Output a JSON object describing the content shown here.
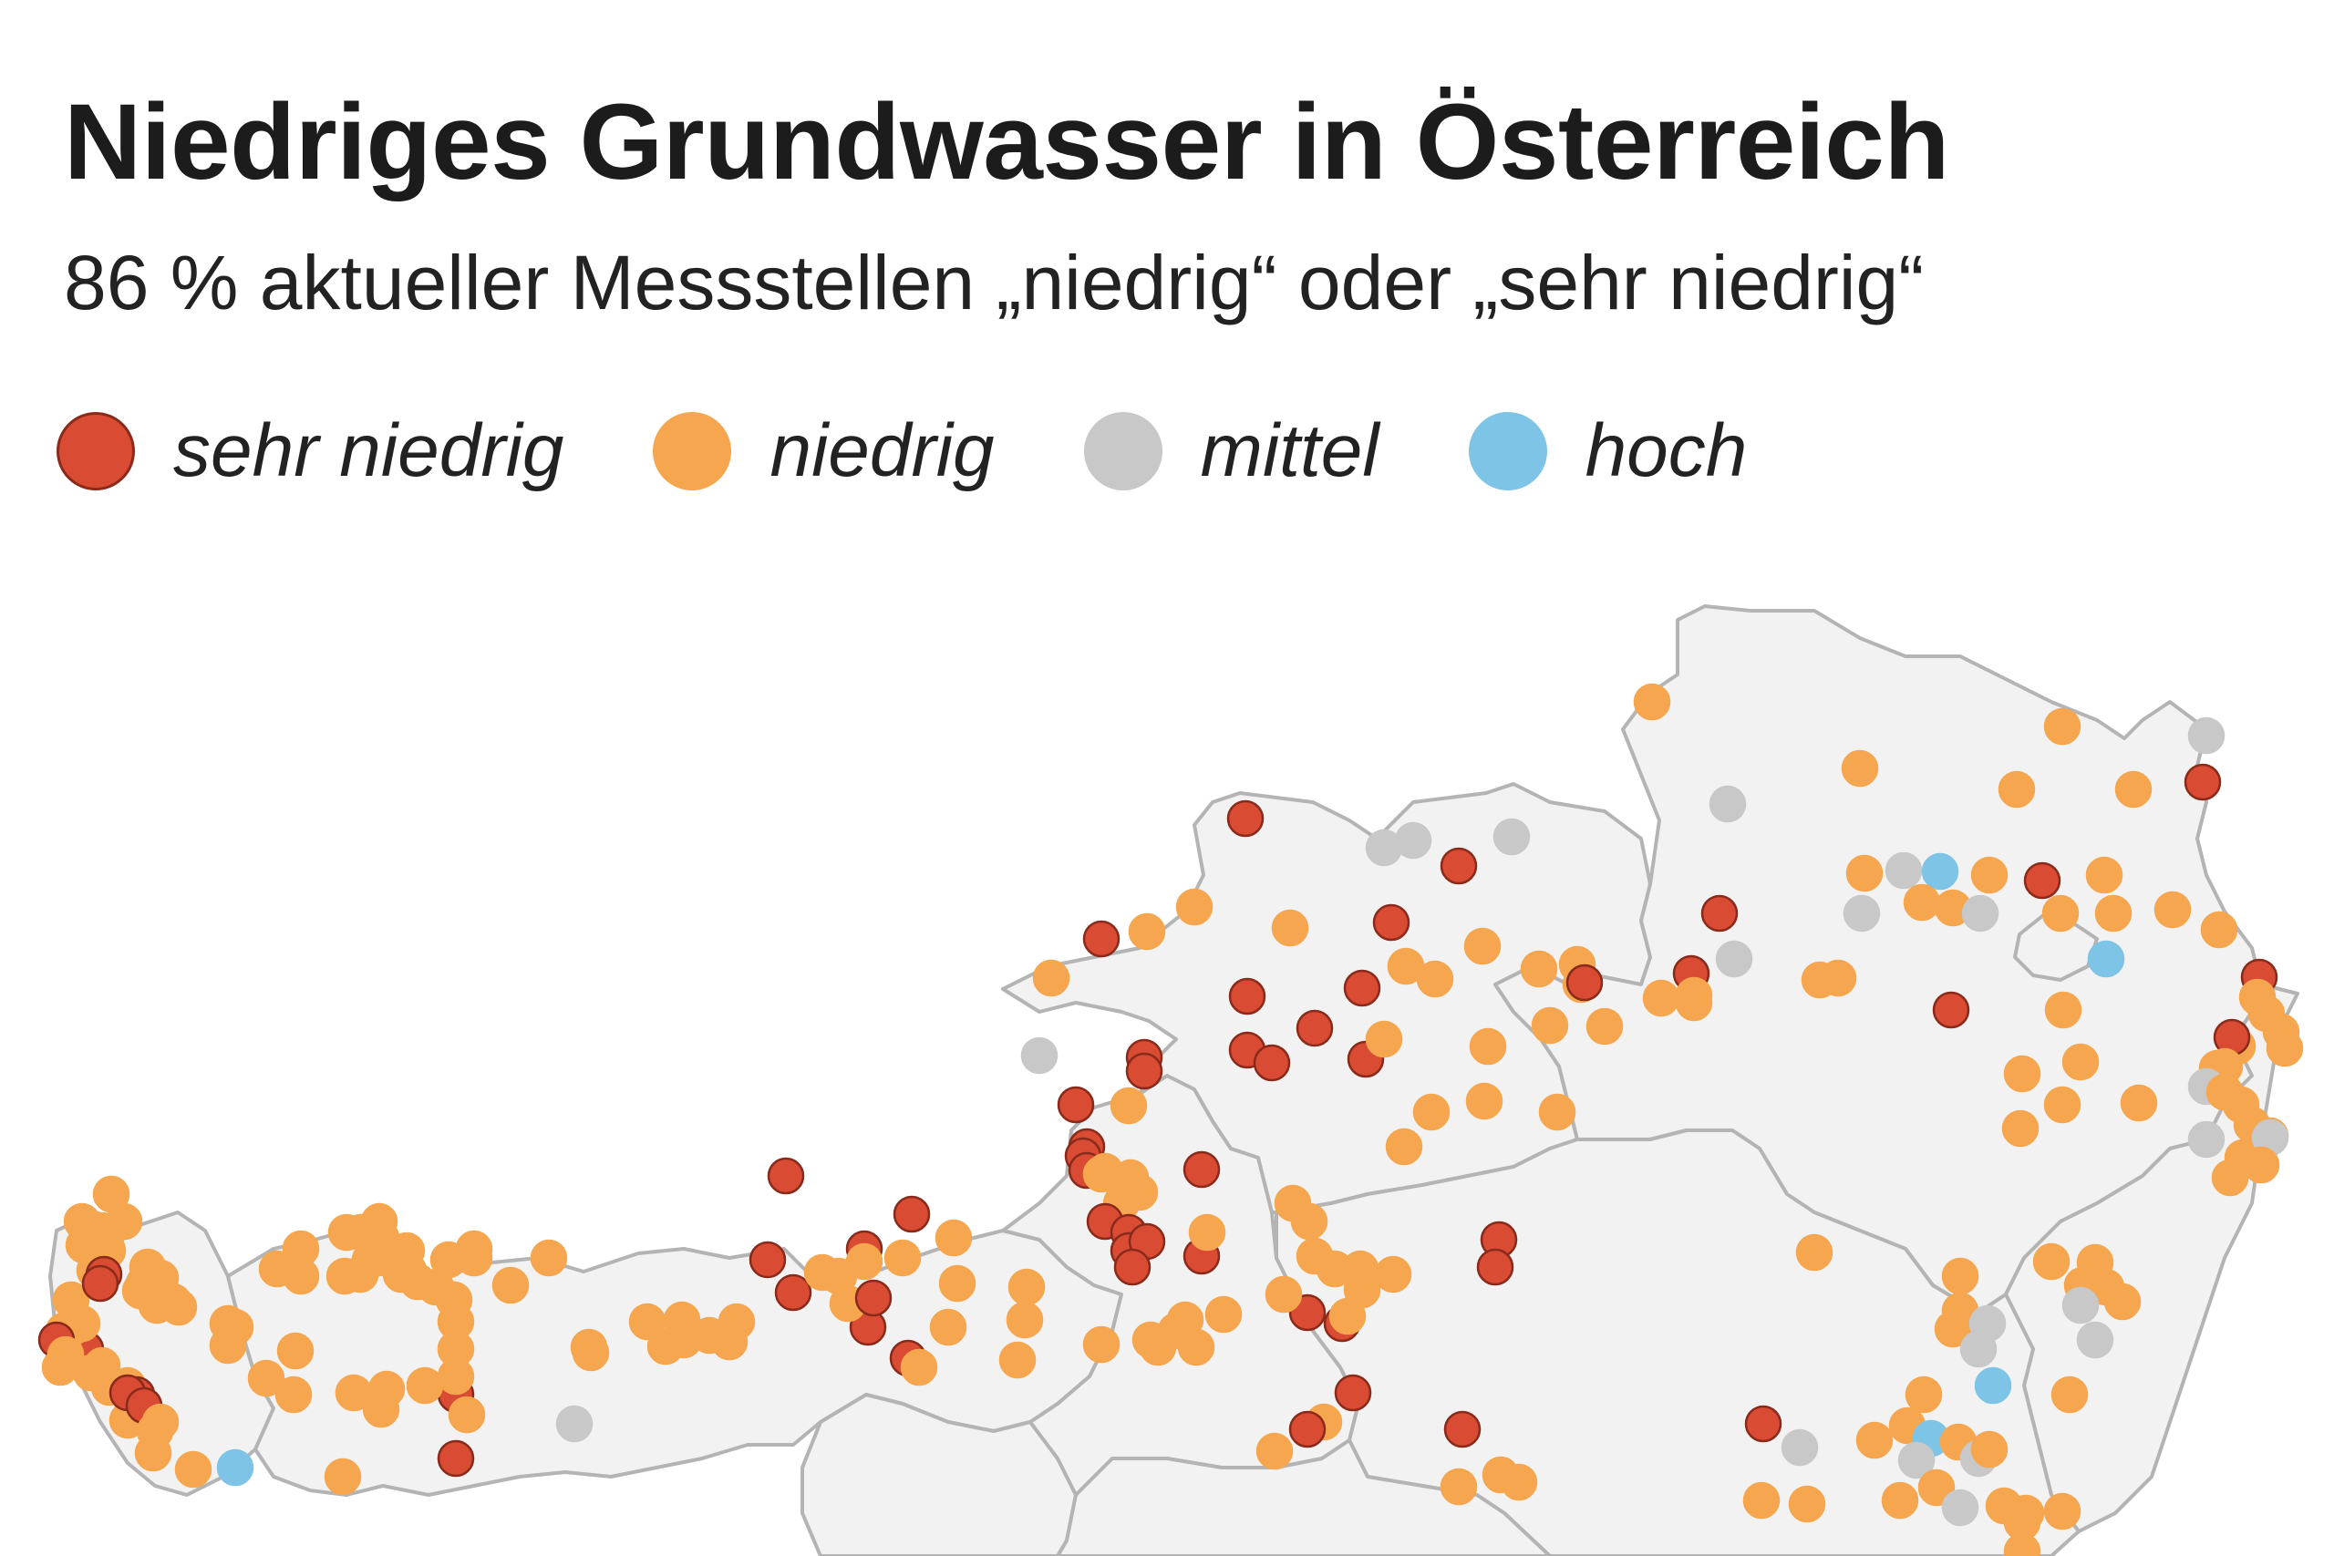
{
  "header": {
    "title": "Niedriges Grundwasser in Österreich",
    "subtitle": "86 % aktueller Messstellen „niedrig“ oder „sehr niedrig“"
  },
  "legend": [
    {
      "key": "sehr",
      "label": "sehr niedrig",
      "color": "#d94b33",
      "stroke": "#8a2a1a"
    },
    {
      "key": "niedrig",
      "label": "niedrig",
      "color": "#f5a64e",
      "stroke": "#f5a64e"
    },
    {
      "key": "mittel",
      "label": "mittel",
      "color": "#c8c8c8",
      "stroke": "#c8c8c8"
    },
    {
      "key": "hoch",
      "label": "hoch",
      "color": "#7ec4e6",
      "stroke": "#7ec4e6"
    }
  ],
  "map": {
    "fill": "#f2f2f2",
    "border": "#b4b4b4"
  }
}
